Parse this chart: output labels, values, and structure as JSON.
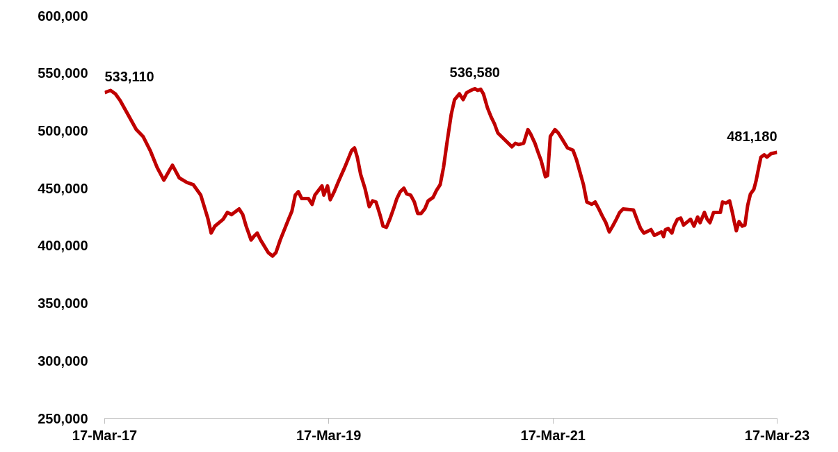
{
  "chart_data": {
    "type": "line",
    "x": [
      "2017-03-17",
      "2017-04-05",
      "2017-04-21",
      "2017-05-07",
      "2017-06-01",
      "2017-06-28",
      "2017-07-20",
      "2017-08-12",
      "2017-09-04",
      "2017-09-26",
      "2017-10-15",
      "2017-10-24",
      "2017-11-15",
      "2017-12-10",
      "2017-12-31",
      "2018-01-24",
      "2018-02-16",
      "2018-02-27",
      "2018-03-11",
      "2018-04-07",
      "2018-04-21",
      "2018-05-04",
      "2018-05-29",
      "2018-06-10",
      "2018-06-21",
      "2018-07-07",
      "2018-07-16",
      "2018-07-27",
      "2018-08-07",
      "2018-09-01",
      "2018-09-15",
      "2018-09-26",
      "2018-10-10",
      "2018-11-06",
      "2018-11-17",
      "2018-11-28",
      "2018-12-08",
      "2018-12-19",
      "2019-01-10",
      "2019-01-22",
      "2019-01-31",
      "2019-02-23",
      "2019-03-01",
      "2019-03-13",
      "2019-03-22",
      "2019-04-04",
      "2019-04-18",
      "2019-05-08",
      "2019-05-31",
      "2019-06-09",
      "2019-06-18",
      "2019-06-29",
      "2019-07-13",
      "2019-07-27",
      "2019-08-07",
      "2019-08-18",
      "2019-09-01",
      "2019-09-10",
      "2019-09-21",
      "2019-10-02",
      "2019-10-14",
      "2019-10-25",
      "2019-11-05",
      "2019-11-17",
      "2019-11-26",
      "2019-12-09",
      "2019-12-21",
      "2020-01-01",
      "2020-01-12",
      "2020-01-24",
      "2020-02-04",
      "2020-02-20",
      "2020-03-02",
      "2020-03-14",
      "2020-03-25",
      "2020-04-05",
      "2020-04-19",
      "2020-04-30",
      "2020-05-16",
      "2020-05-28",
      "2020-06-08",
      "2020-06-22",
      "2020-07-05",
      "2020-07-14",
      "2020-07-24",
      "2020-08-02",
      "2020-08-15",
      "2020-08-27",
      "2020-09-07",
      "2020-09-18",
      "2020-10-11",
      "2020-11-03",
      "2020-11-14",
      "2020-11-25",
      "2020-12-11",
      "2020-12-25",
      "2021-01-03",
      "2021-01-17",
      "2021-01-26",
      "2021-02-06",
      "2021-02-20",
      "2021-02-27",
      "2021-03-08",
      "2021-03-23",
      "2021-04-03",
      "2021-04-17",
      "2021-05-03",
      "2021-05-21",
      "2021-06-01",
      "2021-06-24",
      "2021-07-05",
      "2021-07-21",
      "2021-08-01",
      "2021-08-13",
      "2021-08-24",
      "2021-09-05",
      "2021-09-16",
      "2021-09-27",
      "2021-10-09",
      "2021-10-20",
      "2021-10-31",
      "2021-12-04",
      "2021-12-18",
      "2021-12-27",
      "2022-01-07",
      "2022-01-30",
      "2022-02-10",
      "2022-03-05",
      "2022-03-12",
      "2022-03-18",
      "2022-03-27",
      "2022-04-08",
      "2022-04-15",
      "2022-04-26",
      "2022-05-07",
      "2022-05-16",
      "2022-06-08",
      "2022-06-19",
      "2022-07-01",
      "2022-07-09",
      "2022-07-23",
      "2022-08-01",
      "2022-08-10",
      "2022-08-22",
      "2022-09-13",
      "2022-09-20",
      "2022-10-01",
      "2022-10-13",
      "2022-10-22",
      "2022-10-29",
      "2022-11-04",
      "2022-11-13",
      "2022-11-23",
      "2022-12-02",
      "2022-12-11",
      "2022-12-20",
      "2022-12-31",
      "2023-01-07",
      "2023-01-16",
      "2023-01-23",
      "2023-02-03",
      "2023-02-12",
      "2023-02-25",
      "2023-03-17"
    ],
    "series": [
      {
        "color": "#c00000",
        "values": [
          533110,
          535000,
          532000,
          526000,
          514000,
          501000,
          495000,
          483000,
          468000,
          457000,
          466000,
          470000,
          459000,
          455000,
          453000,
          444000,
          424000,
          411000,
          417000,
          423000,
          429000,
          427000,
          432000,
          427000,
          417000,
          405000,
          408000,
          411000,
          405000,
          394000,
          391000,
          394000,
          405000,
          423000,
          430000,
          444000,
          447000,
          441000,
          441000,
          436000,
          444000,
          452000,
          444000,
          452000,
          440000,
          447000,
          456000,
          468000,
          483000,
          485000,
          477000,
          462000,
          450000,
          434000,
          439000,
          438000,
          426000,
          417000,
          416000,
          423000,
          432000,
          441000,
          447000,
          450000,
          445000,
          444000,
          438000,
          428000,
          428000,
          432000,
          439000,
          442000,
          448000,
          453000,
          468000,
          489000,
          514000,
          527000,
          532000,
          527000,
          533000,
          535000,
          536580,
          535000,
          536000,
          532000,
          520000,
          512000,
          506000,
          498000,
          492000,
          486000,
          489000,
          488000,
          489000,
          501000,
          497000,
          489000,
          482000,
          474000,
          460000,
          461000,
          495000,
          501000,
          498000,
          492000,
          485000,
          483000,
          475000,
          453000,
          438000,
          436000,
          438000,
          432000,
          426000,
          420000,
          412000,
          417000,
          423000,
          429000,
          432000,
          431000,
          421000,
          415000,
          411000,
          414000,
          409000,
          412000,
          408000,
          414000,
          415000,
          411000,
          417000,
          423000,
          424000,
          418000,
          423000,
          417000,
          425000,
          420000,
          429000,
          423000,
          420000,
          429000,
          429000,
          438000,
          437000,
          439000,
          429000,
          420000,
          413000,
          421000,
          417000,
          418000,
          435000,
          445000,
          449000,
          456000,
          468000,
          477000,
          479000,
          477000,
          480000,
          481180
        ]
      }
    ],
    "xlim": [
      "2017-03-17",
      "2023-03-17"
    ],
    "xticks": [
      {
        "value": "2017-03-17",
        "label": "17-Mar-17"
      },
      {
        "value": "2019-03-17",
        "label": "17-Mar-19"
      },
      {
        "value": "2021-03-17",
        "label": "17-Mar-21"
      },
      {
        "value": "2023-03-17",
        "label": "17-Mar-23"
      }
    ],
    "ylim": [
      250000,
      600000
    ],
    "yticks": [
      {
        "value": 250000,
        "label": "250,000"
      },
      {
        "value": 300000,
        "label": "300,000"
      },
      {
        "value": 350000,
        "label": "350,000"
      },
      {
        "value": 400000,
        "label": "400,000"
      },
      {
        "value": 450000,
        "label": "450,000"
      },
      {
        "value": 500000,
        "label": "500,000"
      },
      {
        "value": 550000,
        "label": "550,000"
      },
      {
        "value": 600000,
        "label": "600,000"
      }
    ],
    "annotations": [
      {
        "text": "533,110",
        "x": "2017-03-17",
        "y": 533110
      },
      {
        "text": "536,580",
        "x": "2020-07-05",
        "y": 536580
      },
      {
        "text": "481,180",
        "x": "2023-03-17",
        "y": 481180
      }
    ],
    "grid": false,
    "marker": "none",
    "line_style": "solid"
  }
}
